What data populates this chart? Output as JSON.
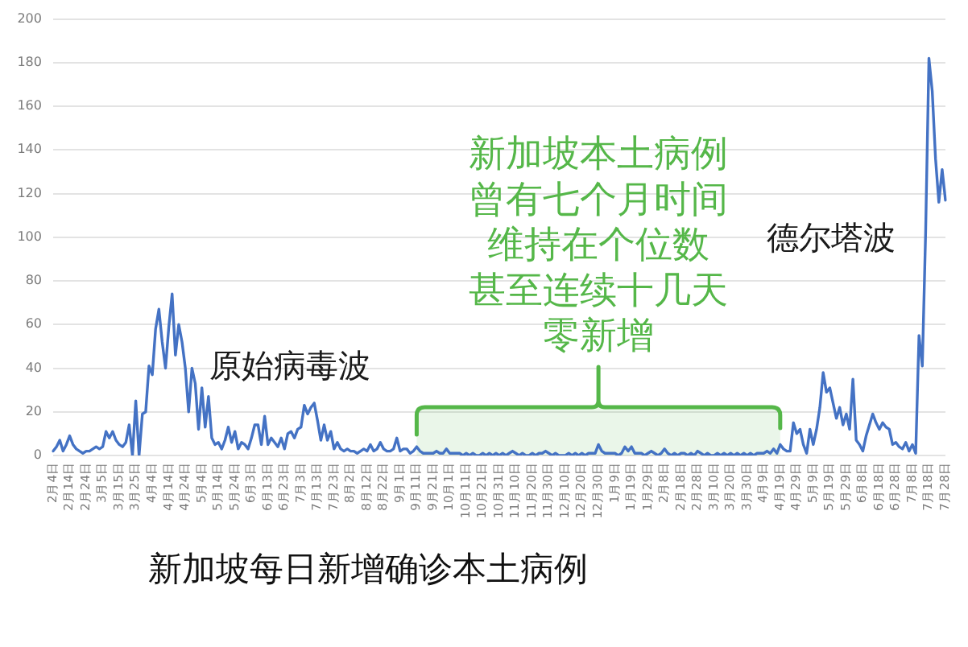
{
  "chart_data": {
    "type": "line",
    "title": "新加坡每日新增确诊本土病例",
    "categories": [
      "2月4日",
      null,
      null,
      null,
      null,
      "2月14日",
      null,
      null,
      null,
      null,
      "2月24日",
      null,
      null,
      null,
      null,
      "3月5日",
      null,
      null,
      null,
      null,
      "3月15日",
      null,
      null,
      null,
      null,
      "3月25日",
      null,
      null,
      null,
      null,
      "4月4日",
      null,
      null,
      null,
      null,
      "4月14日",
      null,
      null,
      null,
      null,
      "4月24日",
      null,
      null,
      null,
      null,
      "5月4日",
      null,
      null,
      null,
      null,
      "5月14日",
      null,
      null,
      null,
      null,
      "5月24日",
      null,
      null,
      null,
      null,
      "6月3日",
      null,
      null,
      null,
      null,
      "6月13日",
      null,
      null,
      null,
      null,
      "6月23日",
      null,
      null,
      null,
      null,
      "7月3日",
      null,
      null,
      null,
      null,
      "7月13日",
      null,
      null,
      null,
      null,
      "7月23日",
      null,
      null,
      null,
      null,
      "8月2日",
      null,
      null,
      null,
      null,
      "8月12日",
      null,
      null,
      null,
      null,
      "8月22日",
      null,
      null,
      null,
      null,
      "9月1日",
      null,
      null,
      null,
      null,
      "9月11日",
      null,
      null,
      null,
      null,
      "9月21日",
      null,
      null,
      null,
      null,
      "10月1日",
      null,
      null,
      null,
      null,
      "10月11日",
      null,
      null,
      null,
      null,
      "10月21日",
      null,
      null,
      null,
      null,
      "10月31日",
      null,
      null,
      null,
      null,
      "11月10日",
      null,
      null,
      null,
      null,
      "11月20日",
      null,
      null,
      null,
      null,
      "11月30日",
      null,
      null,
      null,
      null,
      "12月10日",
      null,
      null,
      null,
      null,
      "12月20日",
      null,
      null,
      null,
      null,
      "12月30日",
      null,
      null,
      null,
      null,
      "1月9日",
      null,
      null,
      null,
      null,
      "1月19日",
      null,
      null,
      null,
      null,
      "1月29日",
      null,
      null,
      null,
      null,
      "2月8日",
      null,
      null,
      null,
      null,
      "2月18日",
      null,
      null,
      null,
      null,
      "2月28日",
      null,
      null,
      null,
      null,
      "3月10日",
      null,
      null,
      null,
      null,
      "3月20日",
      null,
      null,
      null,
      null,
      "3月30日",
      null,
      null,
      null,
      null,
      "4月9日",
      null,
      null,
      null,
      null,
      "4月19日",
      null,
      null,
      null,
      null,
      "4月29日",
      null,
      null,
      null,
      null,
      "5月9日",
      null,
      null,
      null,
      null,
      "5月19日",
      null,
      null,
      null,
      null,
      "5月29日",
      null,
      null,
      null,
      null,
      "6月8日",
      null,
      null,
      null,
      null,
      "6月18日",
      null,
      null,
      null,
      null,
      "6月28日",
      null,
      null,
      null,
      null,
      "7月8日",
      null,
      null,
      null,
      null,
      "7月18日",
      null,
      null,
      null,
      null,
      "7月28日"
    ],
    "values": [
      2,
      4,
      7,
      2,
      5,
      9,
      5,
      3,
      2,
      1,
      2,
      2,
      3,
      4,
      3,
      4,
      11,
      8,
      11,
      7,
      5,
      4,
      6,
      14,
      0,
      25,
      0,
      19,
      20,
      41,
      37,
      58,
      67,
      52,
      40,
      59,
      74,
      46,
      60,
      52,
      40,
      20,
      40,
      33,
      12,
      31,
      13,
      27,
      8,
      5,
      6,
      3,
      7,
      13,
      6,
      11,
      3,
      6,
      5,
      3,
      8,
      14,
      14,
      5,
      18,
      5,
      8,
      6,
      4,
      8,
      3,
      10,
      11,
      8,
      12,
      13,
      23,
      19,
      22,
      24,
      16,
      7,
      14,
      7,
      11,
      3,
      6,
      3,
      2,
      3,
      2,
      2,
      1,
      2,
      3,
      2,
      5,
      2,
      3,
      6,
      3,
      2,
      2,
      3,
      8,
      2,
      3,
      3,
      1,
      2,
      4,
      2,
      1,
      1,
      1,
      1,
      2,
      1,
      1,
      3,
      1,
      1,
      1,
      1,
      0,
      1,
      0,
      1,
      0,
      0,
      1,
      0,
      1,
      0,
      1,
      0,
      1,
      0,
      1,
      2,
      1,
      0,
      1,
      0,
      0,
      1,
      0,
      1,
      1,
      2,
      1,
      0,
      1,
      0,
      0,
      0,
      1,
      0,
      1,
      0,
      1,
      0,
      1,
      1,
      1,
      5,
      2,
      1,
      1,
      1,
      1,
      0,
      1,
      4,
      2,
      4,
      1,
      1,
      1,
      0,
      1,
      2,
      1,
      0,
      1,
      3,
      1,
      0,
      1,
      0,
      1,
      1,
      0,
      1,
      0,
      2,
      1,
      0,
      1,
      0,
      0,
      1,
      0,
      1,
      0,
      1,
      0,
      1,
      0,
      1,
      0,
      1,
      0,
      1,
      1,
      1,
      2,
      1,
      3,
      1,
      5,
      3,
      2,
      2,
      15,
      10,
      12,
      5,
      1,
      12,
      5,
      12,
      22,
      38,
      29,
      31,
      24,
      17,
      22,
      14,
      19,
      12,
      35,
      7,
      5,
      2,
      9,
      14,
      19,
      15,
      12,
      15,
      13,
      12,
      5,
      6,
      4,
      3,
      6,
      2,
      5,
      1,
      55,
      41,
      102,
      182,
      167,
      136,
      116,
      131,
      117
    ],
    "color": "#4472c4",
    "ylim": [
      0,
      200
    ],
    "yticks": [
      0,
      20,
      40,
      60,
      80,
      100,
      120,
      140,
      160,
      180,
      200
    ],
    "grid": "y",
    "marker": "none",
    "line_style": "solid",
    "annotations": [
      "原始病毒波",
      "德尔塔波"
    ],
    "bands": [
      {
        "axis": "x",
        "from": "9月11日",
        "to": "4月19日",
        "label": "新加坡本土病例曾有七个月时间维持在个位数甚至连续十几天零新增",
        "color": "#55b749"
      }
    ]
  }
}
